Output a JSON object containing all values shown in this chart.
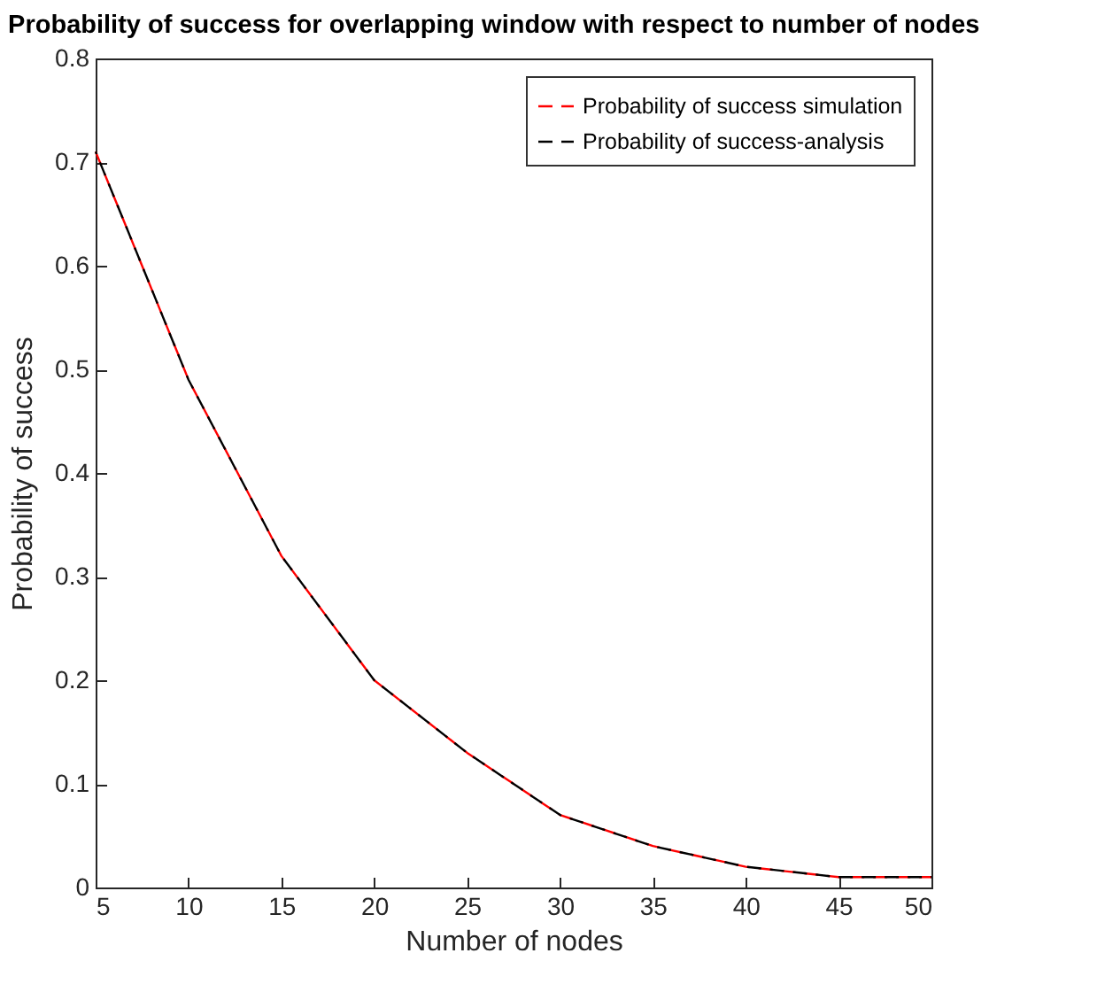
{
  "chart_data": {
    "type": "line",
    "title": "Probability of success for overlapping window with respect to number of nodes",
    "xlabel": "Number of nodes",
    "ylabel": "Probability of success",
    "x": [
      5,
      10,
      15,
      20,
      25,
      30,
      35,
      40,
      45,
      50
    ],
    "series": [
      {
        "name": "Probability of success simulation",
        "color": "#ff0000",
        "values": [
          0.71,
          0.49,
          0.32,
          0.2,
          0.13,
          0.07,
          0.04,
          0.02,
          0.01,
          0.01
        ]
      },
      {
        "name": "Probability of success-analysis",
        "color": "#000000",
        "values": [
          0.71,
          0.49,
          0.32,
          0.2,
          0.13,
          0.07,
          0.04,
          0.02,
          0.01,
          0.01
        ]
      }
    ],
    "xlim": [
      5,
      50
    ],
    "xticks": [
      5,
      10,
      15,
      20,
      25,
      30,
      35,
      40,
      45,
      50
    ],
    "ylim": [
      0,
      0.8
    ],
    "yticks": [
      0,
      0.1,
      0.2,
      0.3,
      0.4,
      0.5,
      0.6,
      0.7,
      0.8
    ],
    "grid": false,
    "legend": "top right",
    "marker": "none",
    "line_style": "dashed"
  }
}
